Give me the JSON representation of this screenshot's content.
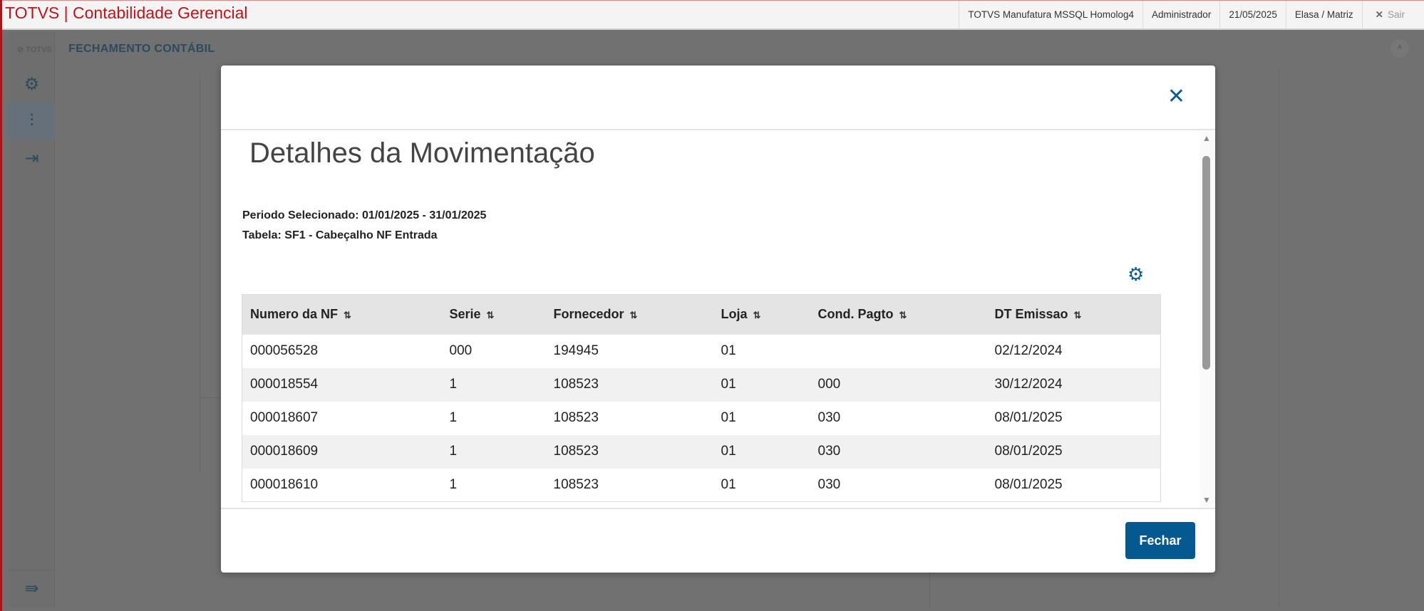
{
  "topbar": {
    "title": "TOTVS | Contabilidade Gerencial",
    "environment": "TOTVS Manufatura MSSQL Homolog4",
    "user": "Administrador",
    "date": "21/05/2025",
    "company": "Elasa / Matriz",
    "logout": "Sair"
  },
  "app": {
    "logo": "TOTVS",
    "page_title": "FECHAMENTO CONTÁBIL"
  },
  "modal": {
    "title": "Detalhes da Movimentação",
    "period": "Periodo Selecionado: 01/01/2025 - 31/01/2025",
    "table_name": "Tabela: SF1 - Cabeçalho NF Entrada",
    "close_label": "Fechar",
    "columns": [
      "Numero da NF",
      "Serie",
      "Fornecedor",
      "Loja",
      "Cond. Pagto",
      "DT Emissao"
    ],
    "rows": [
      [
        "000056528",
        "000",
        "194945",
        "01",
        "",
        "02/12/2024"
      ],
      [
        "000018554",
        "1",
        "108523",
        "01",
        "000",
        "30/12/2024"
      ],
      [
        "000018607",
        "1",
        "108523",
        "01",
        "030",
        "08/01/2025"
      ],
      [
        "000018609",
        "1",
        "108523",
        "01",
        "030",
        "08/01/2025"
      ],
      [
        "000018610",
        "1",
        "108523",
        "01",
        "030",
        "08/01/2025"
      ]
    ]
  },
  "colors": {
    "brand_red": "#c4121b",
    "primary": "#045a90"
  }
}
